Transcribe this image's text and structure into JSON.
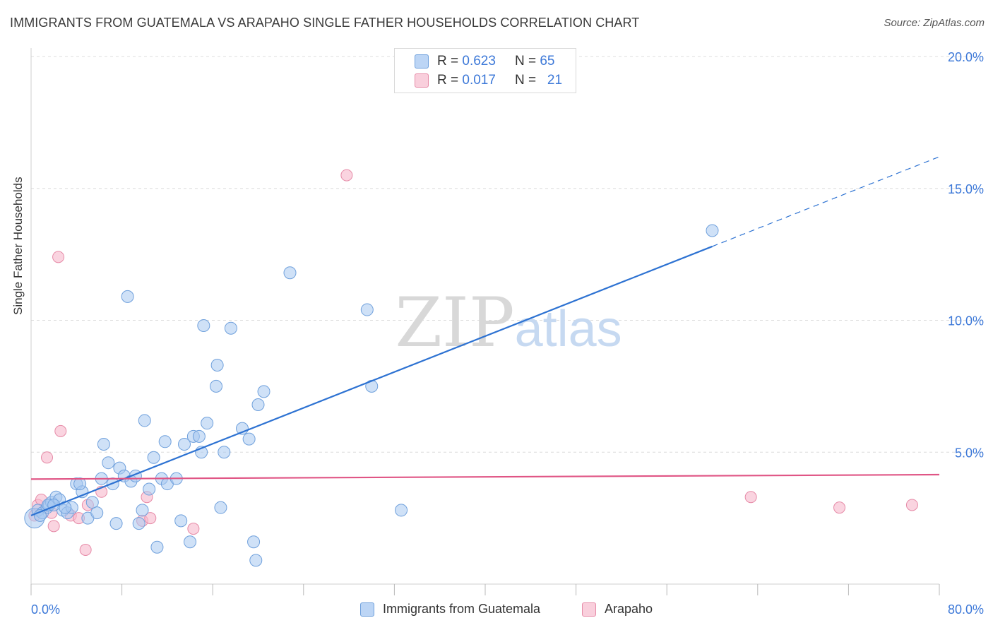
{
  "title": "IMMIGRANTS FROM GUATEMALA VS ARAPAHO SINGLE FATHER HOUSEHOLDS CORRELATION CHART",
  "source": "Source: ZipAtlas.com",
  "watermark": "ZIPatlas",
  "colors": {
    "blue_fill": "#a8c8f0",
    "blue_stroke": "#6fa0dc",
    "blue_line": "#2d72d2",
    "pink_fill": "#f6b8cb",
    "pink_stroke": "#e68aa7",
    "pink_line": "#e05585",
    "axis_text": "#3c78d8",
    "grid": "#dcdcdc"
  },
  "legend_top": {
    "rows": [
      {
        "r_label": "R =",
        "r_value": "0.623",
        "n_label": "N =",
        "n_value": "65"
      },
      {
        "r_label": "R =",
        "r_value": "0.017",
        "n_label": "N =",
        "n_value": "21"
      }
    ]
  },
  "legend_bottom": [
    "Immigrants from Guatemala",
    "Arapaho"
  ],
  "chart_data": {
    "type": "scatter",
    "title": "IMMIGRANTS FROM GUATEMALA VS ARAPAHO SINGLE FATHER HOUSEHOLDS CORRELATION CHART",
    "xlabel": "",
    "ylabel": "Single Father Households",
    "xlim": [
      0,
      80
    ],
    "ylim": [
      0,
      20
    ],
    "x_tick_labels": [
      "0.0%",
      "80.0%"
    ],
    "y_ticks": [
      5,
      10,
      15,
      20
    ],
    "y_tick_labels": [
      "5.0%",
      "10.0%",
      "15.0%",
      "20.0%"
    ],
    "grid": true,
    "legend_position": "top-center",
    "series": [
      {
        "name": "Immigrants from Guatemala",
        "color": "#a8c8f0",
        "points": [
          [
            0.3,
            2.5
          ],
          [
            0.6,
            2.8
          ],
          [
            1.0,
            2.7
          ],
          [
            1.4,
            2.9
          ],
          [
            1.6,
            3.0
          ],
          [
            1.8,
            3.1
          ],
          [
            2.2,
            3.3
          ],
          [
            2.5,
            3.2
          ],
          [
            2.8,
            2.8
          ],
          [
            3.2,
            2.7
          ],
          [
            3.6,
            2.9
          ],
          [
            4.0,
            3.8
          ],
          [
            4.5,
            3.5
          ],
          [
            5.0,
            2.5
          ],
          [
            5.4,
            3.1
          ],
          [
            5.8,
            2.7
          ],
          [
            6.2,
            4.0
          ],
          [
            6.4,
            5.3
          ],
          [
            6.8,
            4.6
          ],
          [
            7.2,
            3.8
          ],
          [
            7.5,
            2.3
          ],
          [
            7.8,
            4.4
          ],
          [
            8.2,
            4.1
          ],
          [
            8.5,
            10.9
          ],
          [
            8.8,
            3.9
          ],
          [
            9.2,
            4.1
          ],
          [
            9.5,
            2.3
          ],
          [
            9.8,
            2.8
          ],
          [
            10.0,
            6.2
          ],
          [
            10.4,
            3.6
          ],
          [
            10.8,
            4.8
          ],
          [
            11.1,
            1.4
          ],
          [
            11.5,
            4.0
          ],
          [
            11.8,
            5.4
          ],
          [
            12.0,
            3.8
          ],
          [
            12.8,
            4.0
          ],
          [
            13.2,
            2.4
          ],
          [
            13.5,
            5.3
          ],
          [
            14.0,
            1.6
          ],
          [
            14.3,
            5.6
          ],
          [
            14.8,
            5.6
          ],
          [
            15.0,
            5.0
          ],
          [
            15.2,
            9.8
          ],
          [
            15.5,
            6.1
          ],
          [
            16.3,
            7.5
          ],
          [
            16.4,
            8.3
          ],
          [
            16.7,
            2.9
          ],
          [
            17.0,
            5.0
          ],
          [
            17.6,
            9.7
          ],
          [
            18.6,
            5.9
          ],
          [
            19.2,
            5.5
          ],
          [
            20.0,
            6.8
          ],
          [
            20.5,
            7.3
          ],
          [
            19.6,
            1.6
          ],
          [
            19.8,
            0.9
          ],
          [
            22.8,
            11.8
          ],
          [
            29.6,
            10.4
          ],
          [
            30.0,
            7.5
          ],
          [
            32.6,
            2.8
          ],
          [
            60.0,
            13.4
          ],
          [
            1.5,
            3.0
          ],
          [
            0.8,
            2.6
          ],
          [
            2.0,
            3.0
          ],
          [
            3.0,
            2.9
          ],
          [
            4.3,
            3.8
          ]
        ],
        "trend": {
          "x": [
            0,
            60
          ],
          "y": [
            2.6,
            12.8
          ],
          "dashed_extension": {
            "x": [
              60,
              80
            ],
            "y": [
              12.8,
              16.2
            ]
          }
        }
      },
      {
        "name": "Arapaho",
        "color": "#f6b8cb",
        "points": [
          [
            0.3,
            2.6
          ],
          [
            0.6,
            3.0
          ],
          [
            0.9,
            3.2
          ],
          [
            1.4,
            4.8
          ],
          [
            1.8,
            2.7
          ],
          [
            2.0,
            2.2
          ],
          [
            2.4,
            12.4
          ],
          [
            2.6,
            5.8
          ],
          [
            3.5,
            2.6
          ],
          [
            4.2,
            2.5
          ],
          [
            4.8,
            1.3
          ],
          [
            5.0,
            3.0
          ],
          [
            6.2,
            3.5
          ],
          [
            9.8,
            2.4
          ],
          [
            10.2,
            3.3
          ],
          [
            10.5,
            2.5
          ],
          [
            14.3,
            2.1
          ],
          [
            27.8,
            15.5
          ],
          [
            63.4,
            3.3
          ],
          [
            71.2,
            2.9
          ],
          [
            77.6,
            3.0
          ]
        ],
        "trend": {
          "x": [
            0,
            80
          ],
          "y": [
            3.98,
            4.15
          ]
        }
      }
    ]
  }
}
